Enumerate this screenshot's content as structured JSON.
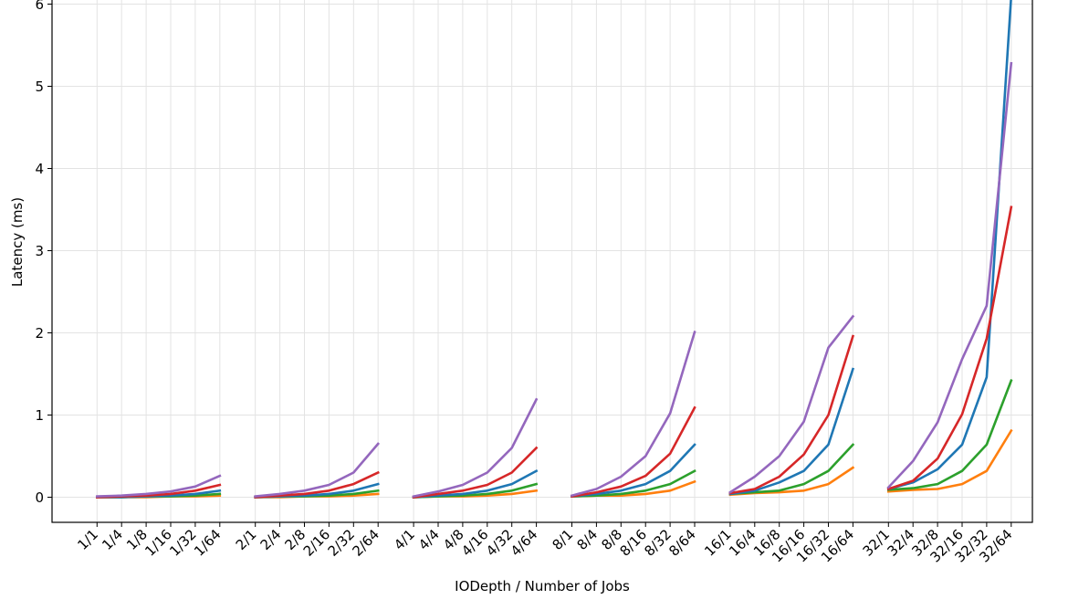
{
  "chart_data": {
    "type": "line",
    "title": "",
    "xlabel": "IODepth / Number of Jobs",
    "ylabel": "Latency (ms)",
    "ylim": [
      -0.3,
      6.1
    ],
    "yticks": [
      0,
      1,
      2,
      3,
      4,
      5,
      6
    ],
    "grid": true,
    "legend": "none",
    "groups": [
      {
        "categories": [
          "1/1",
          "1/4",
          "1/8",
          "1/16",
          "1/32",
          "1/64"
        ]
      },
      {
        "categories": [
          "2/1",
          "2/4",
          "2/8",
          "2/16",
          "2/32",
          "2/64"
        ]
      },
      {
        "categories": [
          "4/1",
          "4/4",
          "4/8",
          "4/16",
          "4/32",
          "4/64"
        ]
      },
      {
        "categories": [
          "8/1",
          "8/4",
          "8/8",
          "8/16",
          "8/32",
          "8/64"
        ]
      },
      {
        "categories": [
          "16/1",
          "16/4",
          "16/8",
          "16/16",
          "16/32",
          "16/64"
        ]
      },
      {
        "categories": [
          "32/1",
          "32/4",
          "32/8",
          "32/16",
          "32/32",
          "32/64"
        ]
      }
    ],
    "series": [
      {
        "color": "#ff7f0e",
        "values": [
          [
            0.0,
            0.0,
            0.0,
            0.01,
            0.01,
            0.02
          ],
          [
            0.0,
            0.0,
            0.01,
            0.01,
            0.02,
            0.04
          ],
          [
            0.0,
            0.01,
            0.01,
            0.02,
            0.04,
            0.08
          ],
          [
            0.01,
            0.02,
            0.02,
            0.04,
            0.08,
            0.19
          ],
          [
            0.03,
            0.05,
            0.06,
            0.08,
            0.16,
            0.36
          ],
          [
            0.07,
            0.09,
            0.1,
            0.16,
            0.32,
            0.81
          ]
        ]
      },
      {
        "color": "#2ca02c",
        "values": [
          [
            0.0,
            0.0,
            0.01,
            0.01,
            0.02,
            0.04
          ],
          [
            0.0,
            0.01,
            0.01,
            0.02,
            0.04,
            0.08
          ],
          [
            0.0,
            0.01,
            0.02,
            0.04,
            0.08,
            0.16
          ],
          [
            0.01,
            0.02,
            0.04,
            0.08,
            0.16,
            0.32
          ],
          [
            0.04,
            0.06,
            0.08,
            0.16,
            0.32,
            0.64
          ],
          [
            0.09,
            0.11,
            0.16,
            0.32,
            0.64,
            1.42
          ]
        ]
      },
      {
        "color": "#1f77b4",
        "values": [
          [
            0.0,
            0.0,
            0.01,
            0.02,
            0.04,
            0.08
          ],
          [
            0.0,
            0.01,
            0.02,
            0.04,
            0.08,
            0.16
          ],
          [
            0.0,
            0.02,
            0.04,
            0.08,
            0.16,
            0.32
          ],
          [
            0.01,
            0.04,
            0.08,
            0.16,
            0.32,
            0.64
          ],
          [
            0.04,
            0.08,
            0.18,
            0.32,
            0.64,
            1.56
          ],
          [
            0.1,
            0.18,
            0.34,
            0.64,
            1.46,
            6.1
          ]
        ]
      },
      {
        "color": "#d62728",
        "values": [
          [
            0.0,
            0.01,
            0.02,
            0.04,
            0.08,
            0.15
          ],
          [
            0.0,
            0.02,
            0.04,
            0.08,
            0.16,
            0.3
          ],
          [
            0.0,
            0.04,
            0.08,
            0.15,
            0.3,
            0.6
          ],
          [
            0.01,
            0.06,
            0.13,
            0.26,
            0.53,
            1.09
          ],
          [
            0.05,
            0.1,
            0.25,
            0.52,
            1.0,
            1.96
          ],
          [
            0.1,
            0.2,
            0.47,
            1.01,
            1.93,
            3.53
          ]
        ]
      },
      {
        "color": "#9467bd",
        "values": [
          [
            0.01,
            0.02,
            0.04,
            0.07,
            0.13,
            0.26
          ],
          [
            0.01,
            0.04,
            0.08,
            0.15,
            0.3,
            0.65
          ],
          [
            0.01,
            0.07,
            0.15,
            0.3,
            0.6,
            1.19
          ],
          [
            0.02,
            0.1,
            0.25,
            0.5,
            1.02,
            2.01
          ],
          [
            0.06,
            0.25,
            0.5,
            0.92,
            1.82,
            2.2
          ],
          [
            0.12,
            0.44,
            0.91,
            1.68,
            2.33,
            5.28
          ]
        ]
      }
    ]
  }
}
